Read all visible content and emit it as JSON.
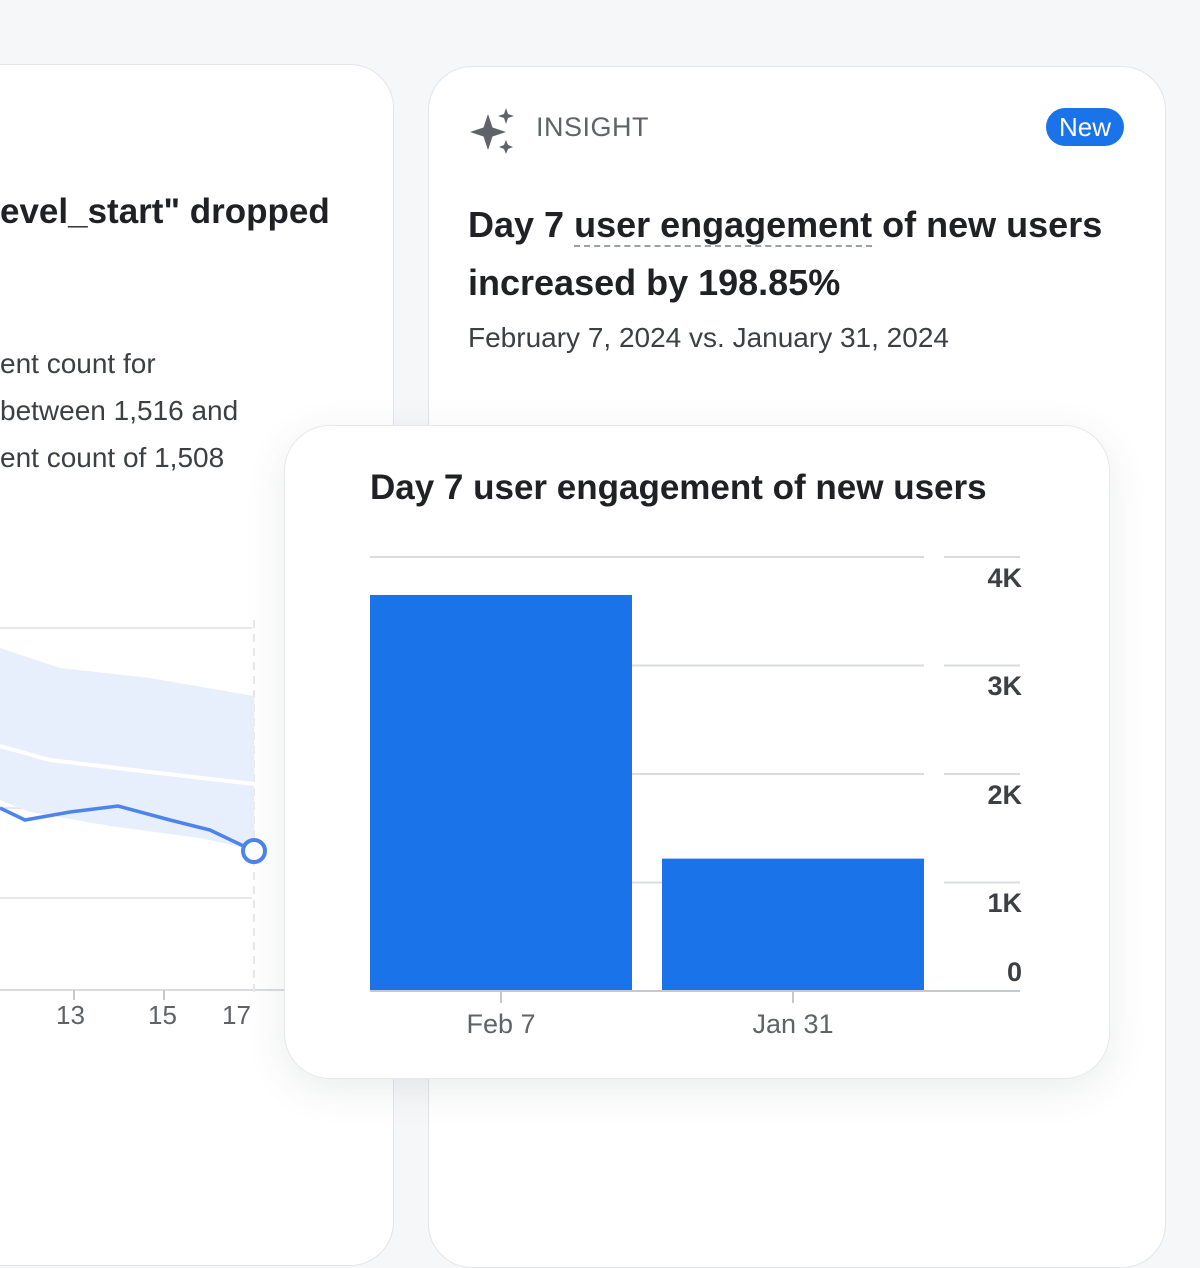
{
  "left_card": {
    "headline": "evel_start\" dropped",
    "body_lines": [
      "ent count for",
      "between 1,516 and",
      "ent count of 1,508"
    ],
    "x_ticks": [
      "13",
      "15",
      "17"
    ]
  },
  "insight_card": {
    "label": "INSIGHT",
    "badge": "New",
    "title_prefix": "Day 7 ",
    "title_link": "user engagement",
    "title_suffix": " of new users increased by 198.85%",
    "date_range": "February 7, 2024 vs. January 31, 2024"
  },
  "chart_data": {
    "type": "bar",
    "title": "Day 7 user engagement of new users",
    "categories": [
      "Feb 7",
      "Jan 31"
    ],
    "values": [
      3650,
      1220
    ],
    "y_ticks": [
      "4K",
      "3K",
      "2K",
      "1K",
      "0"
    ],
    "ylim": [
      0,
      4000
    ],
    "grid": true,
    "color": "#1a73e8"
  },
  "colors": {
    "accent": "#1a73e8",
    "band": "#e8effc"
  }
}
